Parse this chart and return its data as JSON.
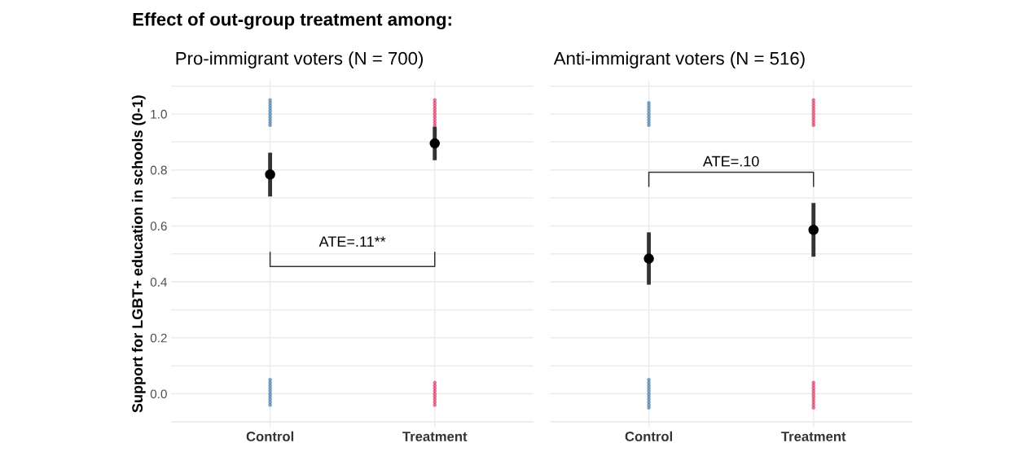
{
  "chart_data": [
    {
      "type": "scatter",
      "title": "Pro-immigrant voters (N = 700)",
      "ylabel": "Support for LGBT+ education in schools (0-1)",
      "annotations": [
        "Effect of out-group treatment among:",
        "ATE=.11**"
      ],
      "categories": [
        "Control",
        "Treatment"
      ],
      "ylim": [
        -0.12,
        1.12
      ],
      "yticks": [
        {
          "value": -0.1,
          "label": null
        },
        {
          "value": 0,
          "label": "0.0"
        },
        {
          "value": 0.1,
          "label": null
        },
        {
          "value": 0.2,
          "label": "0.2"
        },
        {
          "value": 0.3,
          "label": null
        },
        {
          "value": 0.4,
          "label": "0.4"
        },
        {
          "value": 0.5,
          "label": null
        },
        {
          "value": 0.6,
          "label": "0.6"
        },
        {
          "value": 0.7,
          "label": null
        },
        {
          "value": 0.8,
          "label": "0.8"
        },
        {
          "value": 0.9,
          "label": null
        },
        {
          "value": 1.0,
          "label": "1.0"
        },
        {
          "value": 1.1,
          "label": null
        }
      ],
      "grid": true,
      "marker": "circle",
      "series": [
        {
          "color": "#2e6a9b",
          "x": [
            "Control",
            "Control",
            "Control",
            "Control",
            "Control",
            "Control",
            "Control",
            "Control",
            "Control",
            "Control"
          ],
          "values": [
            0.96,
            0.97,
            0.98,
            0.99,
            1.0,
            1.01,
            1.02,
            1.03,
            1.04,
            1.05
          ]
        },
        {
          "color": "#2e6a9b",
          "x": [
            "Control",
            "Control",
            "Control",
            "Control",
            "Control",
            "Control",
            "Control",
            "Control",
            "Control",
            "Control"
          ],
          "values": [
            -0.04,
            -0.03,
            -0.02,
            -0.01,
            0.0,
            0.01,
            0.02,
            0.03,
            0.04,
            0.05
          ]
        },
        {
          "color": "#d91e4f",
          "x": [
            "Treatment",
            "Treatment",
            "Treatment",
            "Treatment",
            "Treatment",
            "Treatment",
            "Treatment",
            "Treatment",
            "Treatment",
            "Treatment"
          ],
          "values": [
            0.96,
            0.97,
            0.98,
            0.99,
            1.0,
            1.01,
            1.02,
            1.03,
            1.04,
            1.05
          ]
        },
        {
          "color": "#d91e4f",
          "x": [
            "Treatment",
            "Treatment",
            "Treatment",
            "Treatment",
            "Treatment",
            "Treatment",
            "Treatment",
            "Treatment",
            "Treatment"
          ],
          "values": [
            -0.04,
            -0.03,
            -0.02,
            -0.01,
            0.0,
            0.01,
            0.02,
            0.03,
            0.04
          ]
        },
        {
          "color": "#000000",
          "x": [
            "Control",
            "Treatment"
          ],
          "values": [
            0.784,
            0.895
          ],
          "errors": [
            [
              0.705,
              0.862
            ],
            [
              0.835,
              0.955
            ]
          ]
        }
      ]
    },
    {
      "type": "scatter",
      "title": "Anti-immigrant voters (N = 516)",
      "annotations": [
        "ATE=.10"
      ],
      "categories": [
        "Control",
        "Treatment"
      ],
      "ylim": [
        -0.12,
        1.12
      ],
      "yticks": [
        -0.1,
        0,
        0.1,
        0.2,
        0.3,
        0.4,
        0.5,
        0.6,
        0.7,
        0.8,
        0.9,
        1.0,
        1.1
      ],
      "tick_labels": "x",
      "grid": true,
      "marker": "circle",
      "series": [
        {
          "color": "#2e6a9b",
          "x": [
            "Control",
            "Control",
            "Control",
            "Control",
            "Control",
            "Control",
            "Control",
            "Control",
            "Control"
          ],
          "values": [
            0.96,
            0.97,
            0.98,
            0.99,
            1.0,
            1.01,
            1.02,
            1.03,
            1.04
          ]
        },
        {
          "color": "#2e6a9b",
          "x": [
            "Control",
            "Control",
            "Control",
            "Control",
            "Control",
            "Control",
            "Control",
            "Control",
            "Control",
            "Control",
            "Control"
          ],
          "values": [
            -0.05,
            -0.04,
            -0.03,
            -0.02,
            -0.01,
            0.0,
            0.01,
            0.02,
            0.03,
            0.04,
            0.05
          ]
        },
        {
          "color": "#d91e4f",
          "x": [
            "Treatment",
            "Treatment",
            "Treatment",
            "Treatment",
            "Treatment",
            "Treatment",
            "Treatment",
            "Treatment",
            "Treatment",
            "Treatment"
          ],
          "values": [
            0.96,
            0.97,
            0.98,
            0.99,
            1.0,
            1.01,
            1.02,
            1.03,
            1.04,
            1.05
          ]
        },
        {
          "color": "#d91e4f",
          "x": [
            "Treatment",
            "Treatment",
            "Treatment",
            "Treatment",
            "Treatment",
            "Treatment",
            "Treatment",
            "Treatment",
            "Treatment",
            "Treatment"
          ],
          "values": [
            -0.05,
            -0.04,
            -0.03,
            -0.02,
            -0.01,
            0.0,
            0.01,
            0.02,
            0.03,
            0.04
          ]
        },
        {
          "color": "#000000",
          "x": [
            "Control",
            "Treatment"
          ],
          "values": [
            0.483,
            0.586
          ],
          "errors": [
            [
              0.39,
              0.577
            ],
            [
              0.49,
              0.682
            ]
          ]
        }
      ]
    }
  ]
}
